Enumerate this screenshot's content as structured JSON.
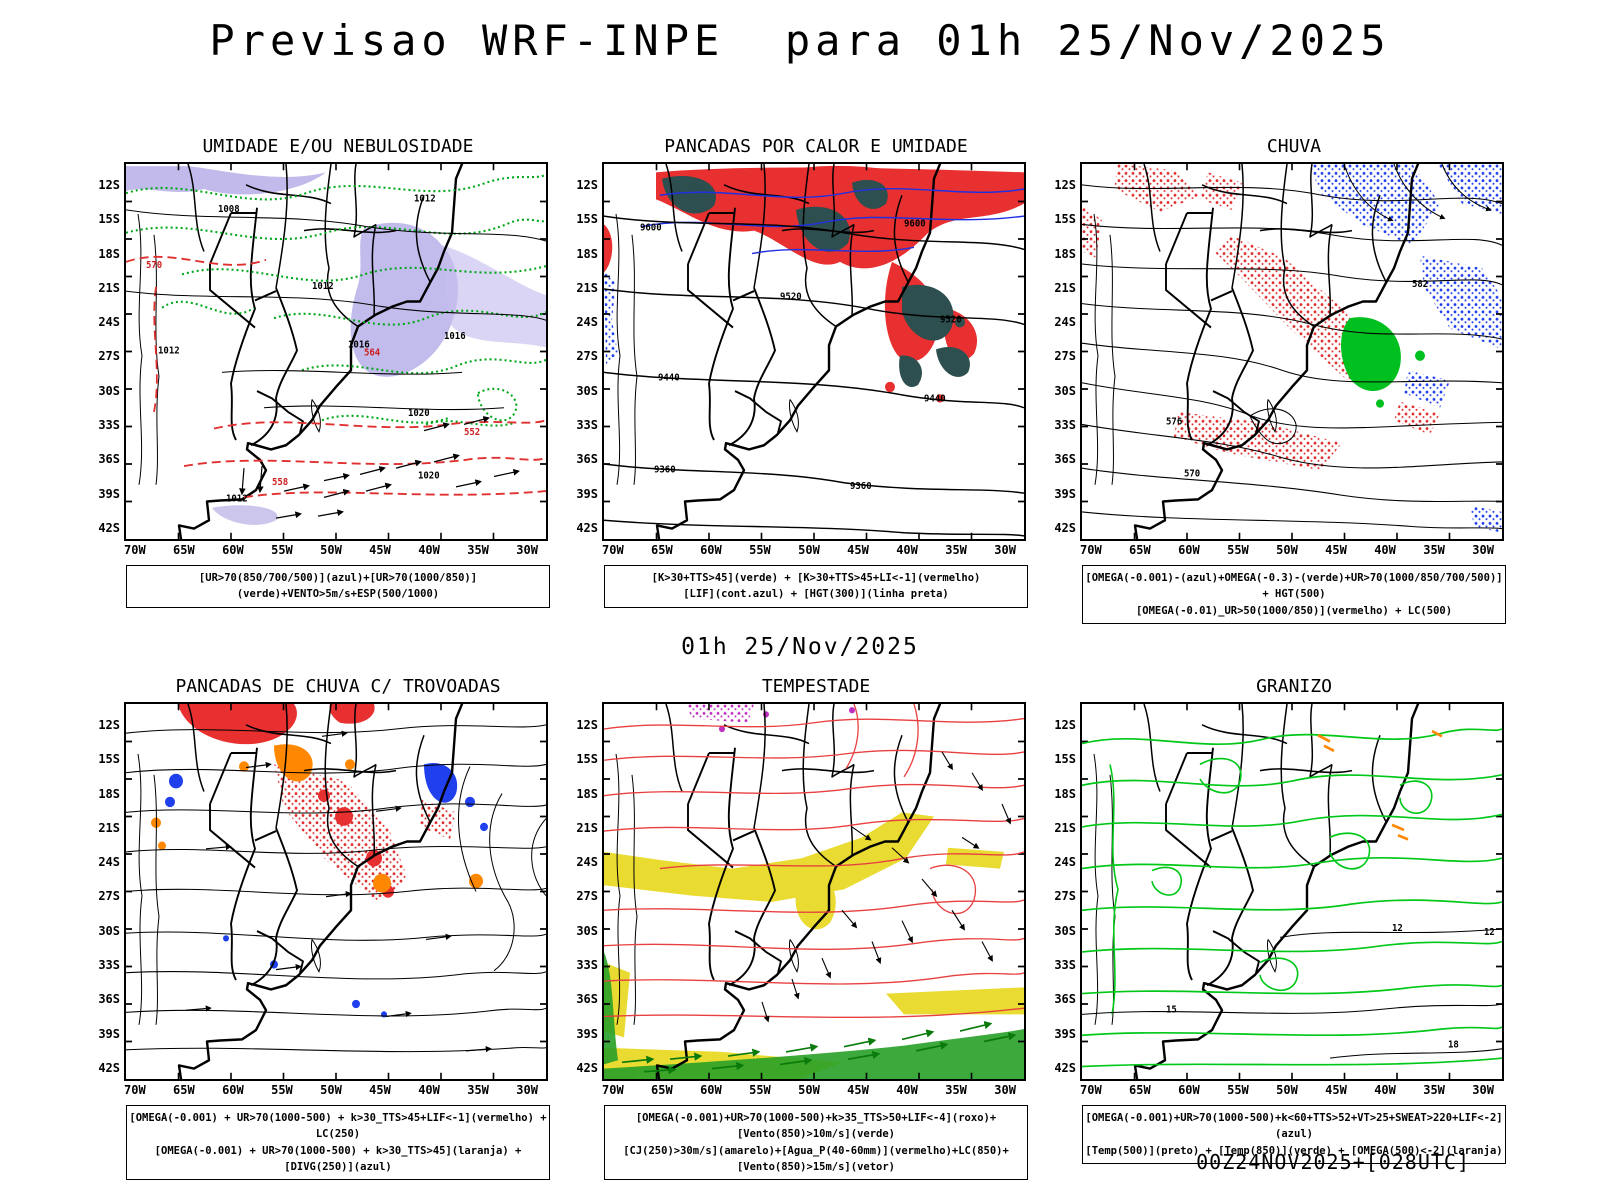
{
  "page": {
    "title": "Previsao WRF-INPE  para 01h 25/Nov/2025",
    "mid_title": "01h 25/Nov/2025",
    "footer": "00Z24NOV2025+[028UTC]",
    "background": "#ffffff"
  },
  "axes": {
    "lat_ticks": [
      "12S",
      "15S",
      "18S",
      "21S",
      "24S",
      "27S",
      "30S",
      "33S",
      "36S",
      "39S",
      "42S"
    ],
    "lon_ticks": [
      "70W",
      "65W",
      "60W",
      "55W",
      "50W",
      "45W",
      "40W",
      "35W",
      "30W"
    ]
  },
  "legend_colors": {
    "azul": "#2030e0",
    "verde": "#00a818",
    "vermelho": "#e03030",
    "laranja": "#ff8800",
    "amarelo": "#e8d820",
    "roxo": "#c030c0",
    "preto": "#000000"
  },
  "panels": [
    {
      "id": "umidade",
      "title": "UMIDADE E/OU NEBULOSIDADE",
      "caption": [
        "[UR>70(850/700/500)](azul)+[UR>70(1000/850)](verde)+VENTO>5m/s+ESP(500/1000)"
      ]
    },
    {
      "id": "pancadas-calor",
      "title": "PANCADAS POR CALOR E UMIDADE",
      "caption": [
        "[K>30+TTS>45](verde) + [K>30+TTS>45+LI<-1](vermelho)",
        "[LIF](cont.azul) + [HGT(300)](linha preta)"
      ]
    },
    {
      "id": "chuva",
      "title": "CHUVA",
      "caption": [
        "[OMEGA(-0.001)-(azul)+OMEGA(-0.3)-(verde)+UR>70(1000/850/700/500)] + HGT(500)",
        "[OMEGA(-0.01)_UR>50(1000/850)](vermelho) + LC(500)"
      ]
    },
    {
      "id": "trovoadas",
      "title": "PANCADAS DE CHUVA C/ TROVOADAS",
      "caption": [
        "[OMEGA(-0.001) + UR>70(1000-500) + k>30_TTS>45+LIF<-1](vermelho) + LC(250)",
        "[OMEGA(-0.001) + UR>70(1000-500) + k>30_TTS>45](laranja) + [DIVG(250)](azul)"
      ]
    },
    {
      "id": "tempestade",
      "title": "TEMPESTADE",
      "caption": [
        "[OMEGA(-0.001)+UR>70(1000-500)+k>35_TTS>50+LIF<-4](roxo)+[Vento(850)>10m/s](verde)",
        "[CJ(250)>30m/s](amarelo)+[Agua_P(40-60mm)](vermelho)+LC(850)+[Vento(850)>15m/s](vetor)"
      ]
    },
    {
      "id": "granizo",
      "title": "GRANIZO",
      "caption": [
        "[OMEGA(-0.001)+UR>70(1000-500)+k<60+TTS>52+VT>25+SWEAT>220+LIF<-2](azul)",
        "[Temp(500)](preto) + [Temp(850)](verde) + [OMEGA(500)<-2](laranja)"
      ]
    }
  ],
  "contour_labels": {
    "umidade": {
      "black": [
        "1008",
        "1012",
        "1016",
        "1020"
      ],
      "red": [
        "570",
        "564",
        "552",
        "558"
      ]
    },
    "pancadas_calor": {
      "black": [
        "9600",
        "9520",
        "9440",
        "9360"
      ]
    },
    "chuva": {
      "black": [
        "582",
        "576",
        "570"
      ]
    },
    "granizo": {
      "black": [
        "12",
        "15",
        "18"
      ]
    }
  }
}
